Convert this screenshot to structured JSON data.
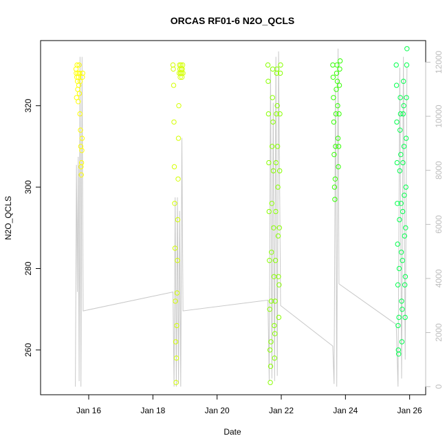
{
  "chart_data": {
    "type": "scatter",
    "title": "ORCAS RF01-6 N2O_QCLS",
    "xlabel": "Date",
    "ylabel": "N2O_QCLS",
    "xlim": [
      "2016-01-14T12:00",
      "2016-01-26T12:00"
    ],
    "ylim": [
      249,
      336
    ],
    "y2lim": [
      -300,
      12800
    ],
    "x_ticks": [
      {
        "date": "2016-01-16",
        "label": "Jan 16"
      },
      {
        "date": "2016-01-18",
        "label": "Jan 18"
      },
      {
        "date": "2016-01-20",
        "label": "Jan 20"
      },
      {
        "date": "2016-01-22",
        "label": "Jan 22"
      },
      {
        "date": "2016-01-24",
        "label": "Jan 24"
      },
      {
        "date": "2016-01-26",
        "label": "Jan 26"
      }
    ],
    "y_ticks": [
      260,
      280,
      300,
      320
    ],
    "y2_ticks": [
      0,
      2000,
      4000,
      6000,
      8000,
      10000,
      12000
    ],
    "grid": false,
    "legend": "none",
    "series": [
      {
        "color": "#ffff00",
        "start": "2016-01-15T14:30",
        "end": "2016-01-15T19:30",
        "values": [
          329,
          328,
          322,
          327,
          330,
          326,
          324,
          328,
          321,
          327,
          325,
          330,
          323,
          328,
          318,
          326,
          314,
          310,
          305,
          303,
          306,
          309,
          312,
          327,
          328
        ]
      },
      {
        "color": "#d4ff00",
        "start": "2016-01-18T15:00",
        "end": "2016-01-18T22:30",
        "values": [
          330,
          329,
          325,
          316,
          305,
          296,
          285,
          272,
          262,
          252,
          258,
          266,
          274,
          282,
          292,
          302,
          312,
          320,
          328,
          330,
          329,
          327,
          328,
          330,
          329,
          328,
          327,
          329,
          330,
          328
        ]
      },
      {
        "color": "#88ff00",
        "start": "2016-01-21T14:00",
        "end": "2016-01-21T23:30",
        "values": [
          330,
          326,
          318,
          306,
          294,
          282,
          270,
          260,
          252,
          256,
          262,
          272,
          284,
          296,
          310,
          322,
          329,
          316,
          304,
          290,
          278,
          266,
          258,
          264,
          272,
          282,
          294,
          306,
          318,
          328,
          329,
          320,
          310,
          300,
          288,
          278,
          268,
          276,
          290,
          304,
          318,
          328,
          330
        ]
      },
      {
        "color": "#33ff00",
        "start": "2016-01-23T14:30",
        "end": "2016-01-23T20:00",
        "values": [
          330,
          327,
          322,
          316,
          308,
          300,
          297,
          302,
          310,
          318,
          324,
          328,
          330,
          326,
          320,
          312,
          305,
          310,
          318,
          325,
          329,
          331
        ]
      },
      {
        "color": "#00ff4c",
        "start": "2016-01-25T14:00",
        "end": "2016-01-25T22:00",
        "values": [
          330,
          325,
          316,
          306,
          296,
          286,
          276,
          266,
          260,
          259,
          268,
          280,
          292,
          304,
          314,
          322,
          318,
          308,
          296,
          284,
          272,
          262,
          270,
          282,
          294,
          306,
          318,
          326,
          320,
          310,
          298,
          288,
          276,
          268,
          278,
          290,
          300,
          312,
          322,
          330,
          334
        ]
      }
    ],
    "altitude": {
      "axis": "right",
      "color": "#c8c8c8",
      "points": [
        [
          "2016-01-15T14:00",
          0
        ],
        [
          "2016-01-15T14:50",
          8200
        ],
        [
          "2016-01-15T15:30",
          3500
        ],
        [
          "2016-01-15T16:10",
          8500
        ],
        [
          "2016-01-15T16:50",
          200
        ],
        [
          "2016-01-15T17:30",
          12200
        ],
        [
          "2016-01-15T18:10",
          0
        ],
        [
          "2016-01-15T19:00",
          12200
        ],
        [
          "2016-01-15T19:50",
          2800
        ],
        [
          "2016-01-18T15:00",
          3500
        ],
        [
          "2016-01-18T15:50",
          0
        ],
        [
          "2016-01-18T16:40",
          7000
        ],
        [
          "2016-01-18T17:30",
          0
        ],
        [
          "2016-01-18T18:20",
          7000
        ],
        [
          "2016-01-18T19:10",
          100
        ],
        [
          "2016-01-18T20:00",
          6500
        ],
        [
          "2016-01-18T20:50",
          0
        ],
        [
          "2016-01-18T21:40",
          9200
        ],
        [
          "2016-01-18T22:30",
          2800
        ],
        [
          "2016-01-21T14:00",
          3200
        ],
        [
          "2016-01-21T15:00",
          200
        ],
        [
          "2016-01-21T16:00",
          11800
        ],
        [
          "2016-01-21T17:00",
          300
        ],
        [
          "2016-01-21T18:00",
          10500
        ],
        [
          "2016-01-21T19:00",
          200
        ],
        [
          "2016-01-21T20:00",
          12200
        ],
        [
          "2016-01-21T21:00",
          400
        ],
        [
          "2016-01-21T22:00",
          12400
        ],
        [
          "2016-01-21T23:30",
          3000
        ],
        [
          "2016-01-23T14:30",
          1500
        ],
        [
          "2016-01-23T15:30",
          100
        ],
        [
          "2016-01-23T16:30",
          11000
        ],
        [
          "2016-01-23T17:30",
          0
        ],
        [
          "2016-01-23T18:30",
          12500
        ],
        [
          "2016-01-23T19:10",
          3800
        ],
        [
          "2016-01-25T14:00",
          2300
        ],
        [
          "2016-01-25T15:20",
          0
        ],
        [
          "2016-01-25T16:40",
          11800
        ],
        [
          "2016-01-25T18:00",
          300
        ],
        [
          "2016-01-25T19:20",
          12200
        ],
        [
          "2016-01-25T20:40",
          1000
        ],
        [
          "2016-01-25T22:00",
          11800
        ]
      ]
    }
  }
}
